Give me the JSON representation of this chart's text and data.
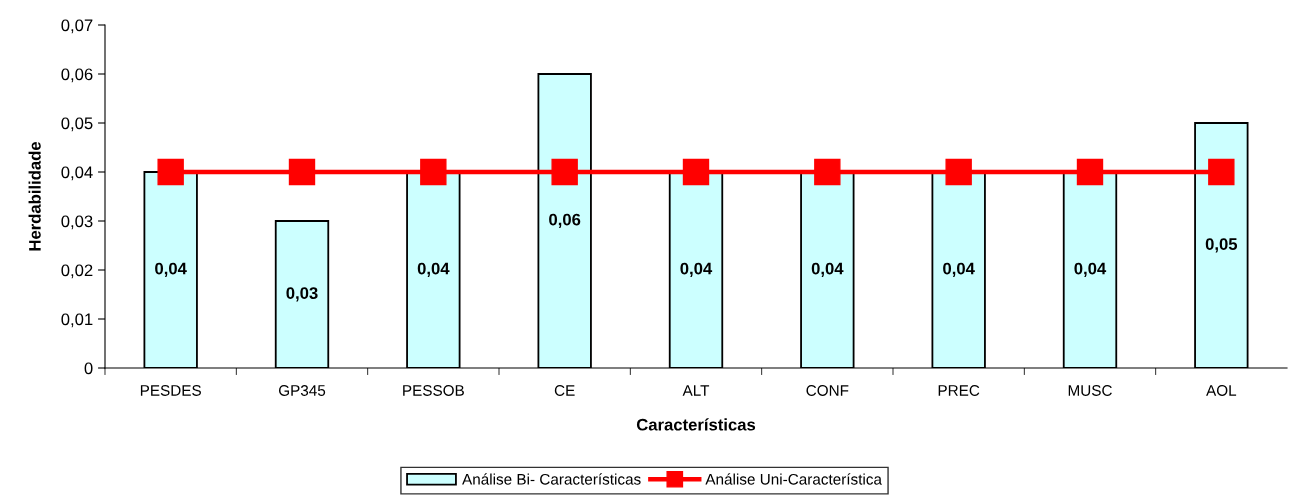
{
  "chart_data": {
    "type": "bar",
    "xlabel": "Características",
    "ylabel": "Herdabilidade",
    "categories": [
      "PESDES",
      "GP345",
      "PESSOB",
      "CE",
      "ALT",
      "CONF",
      "PREC",
      "MUSC",
      "AOL"
    ],
    "series": [
      {
        "name": "Análise Bi- Características",
        "color": "#ccffff",
        "values": [
          0.04,
          0.03,
          0.04,
          0.06,
          0.04,
          0.04,
          0.04,
          0.04,
          0.05
        ],
        "value_labels": [
          "0,04",
          "0,03",
          "0,04",
          "0,06",
          "0,04",
          "0,04",
          "0,04",
          "0,04",
          "0,05"
        ]
      },
      {
        "name": "Análise Uni-Característica",
        "type": "line",
        "color": "#ff0000",
        "values": [
          0.04,
          0.04,
          0.04,
          0.04,
          0.04,
          0.04,
          0.04,
          0.04,
          0.04
        ],
        "marker": "square",
        "line_style": "solid"
      }
    ],
    "ylim": [
      0,
      0.07
    ],
    "yticks": [
      0,
      {
        "value": 0.01,
        "label": "0,01"
      },
      {
        "value": 0.02,
        "label": "0,02"
      },
      {
        "value": 0.03,
        "label": "0,03"
      },
      {
        "value": 0.04,
        "label": "0,04"
      },
      {
        "value": 0.05,
        "label": "0,05"
      },
      {
        "value": 0.06,
        "label": "0,06"
      },
      {
        "value": 0.07,
        "label": "0,07"
      }
    ],
    "grid": false,
    "legend": "bottom"
  }
}
